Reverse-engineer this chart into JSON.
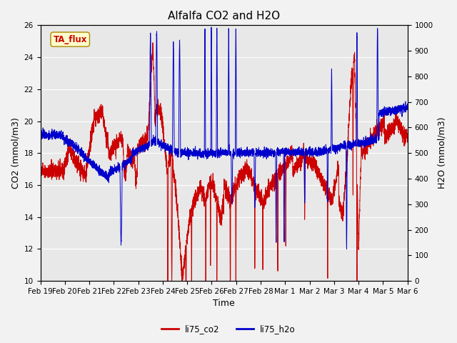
{
  "title": "Alfalfa CO2 and H2O",
  "xlabel": "Time",
  "ylabel_left": "CO2 (mmol/m3)",
  "ylabel_right": "H2O (mmol/m3)",
  "ylim_left": [
    10,
    26
  ],
  "ylim_right": [
    0,
    1000
  ],
  "yticks_left": [
    10,
    12,
    14,
    16,
    18,
    20,
    22,
    24,
    26
  ],
  "yticks_right": [
    0,
    100,
    200,
    300,
    400,
    500,
    600,
    700,
    800,
    900,
    1000
  ],
  "xtick_labels": [
    "Feb 19",
    "Feb 20",
    "Feb 21",
    "Feb 22",
    "Feb 23",
    "Feb 24",
    "Feb 25",
    "Feb 26",
    "Feb 27",
    "Feb 28",
    "Mar 1",
    "Mar 2",
    "Mar 3",
    "Mar 4",
    "Mar 5",
    "Mar 6"
  ],
  "color_co2": "#cc0000",
  "color_h2o": "#0000cc",
  "linewidth": 0.7,
  "legend_label_co2": "li75_co2",
  "legend_label_h2o": "li75_h2o",
  "annotation_text": "TA_flux",
  "plot_bg_color": "#e8e8e8",
  "fig_bg_color": "#f2f2f2",
  "grid_color": "white",
  "title_fontsize": 11,
  "axis_label_fontsize": 9,
  "tick_fontsize": 7.5
}
